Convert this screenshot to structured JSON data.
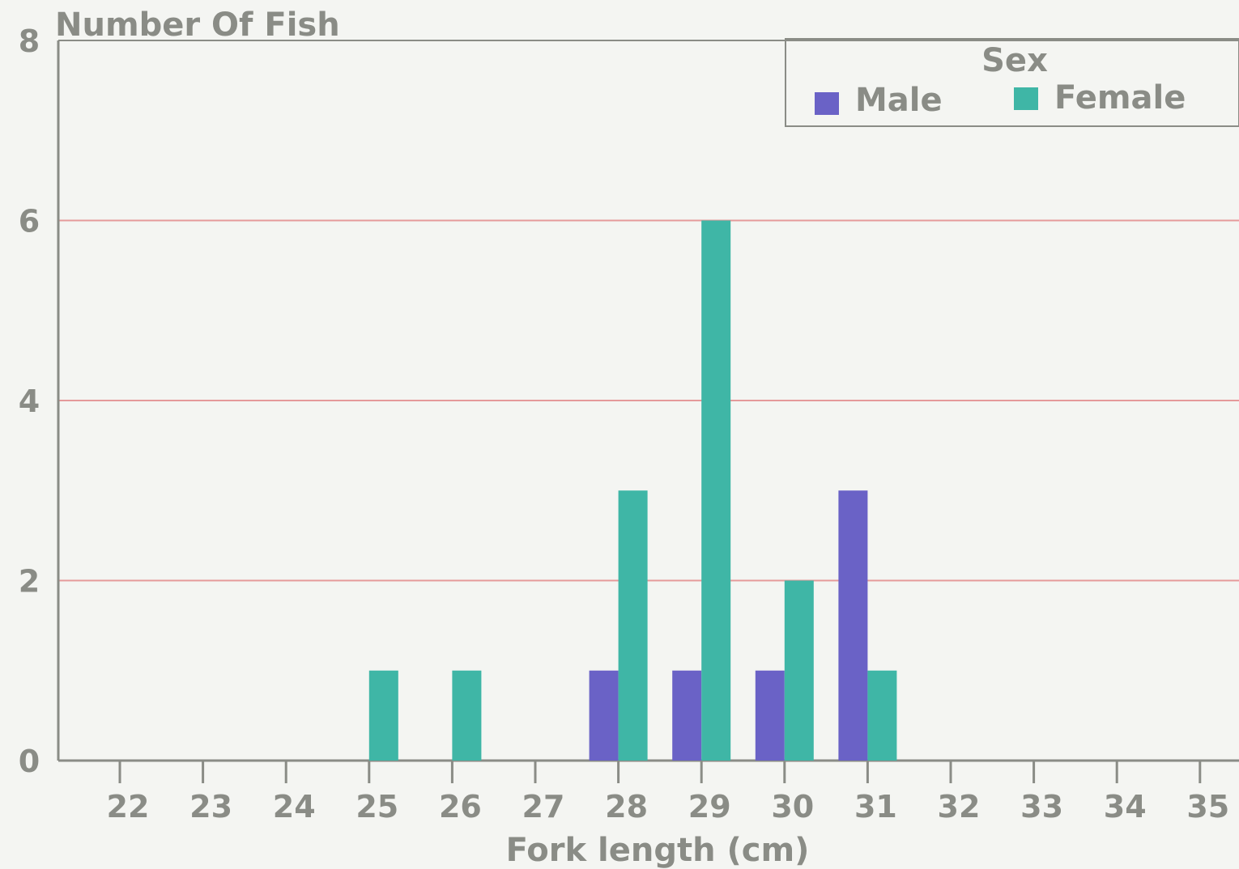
{
  "chart_data": {
    "type": "bar",
    "ylabel": "Number Of Fish",
    "xlabel": "Fork length (cm)",
    "categories": [
      "22",
      "23",
      "24",
      "25",
      "26",
      "27",
      "28",
      "29",
      "30",
      "31",
      "32",
      "33",
      "34",
      "35"
    ],
    "series": [
      {
        "name": "Male",
        "color": "#6a62c6",
        "values": [
          0,
          0,
          0,
          0,
          0,
          0,
          1,
          1,
          1,
          3,
          0,
          0,
          0,
          0
        ]
      },
      {
        "name": "Female",
        "color": "#3fb6a6",
        "values": [
          0,
          0,
          0,
          1,
          1,
          0,
          3,
          6,
          2,
          1,
          0,
          0,
          0,
          0
        ]
      }
    ],
    "ylim": [
      0,
      8
    ],
    "yticks": [
      0,
      2,
      4,
      6,
      8
    ],
    "grid": true,
    "grid_color": "#e59a9a",
    "axis_color": "#8a8c86",
    "legend": {
      "title": "Sex",
      "placement": "top-right"
    }
  }
}
